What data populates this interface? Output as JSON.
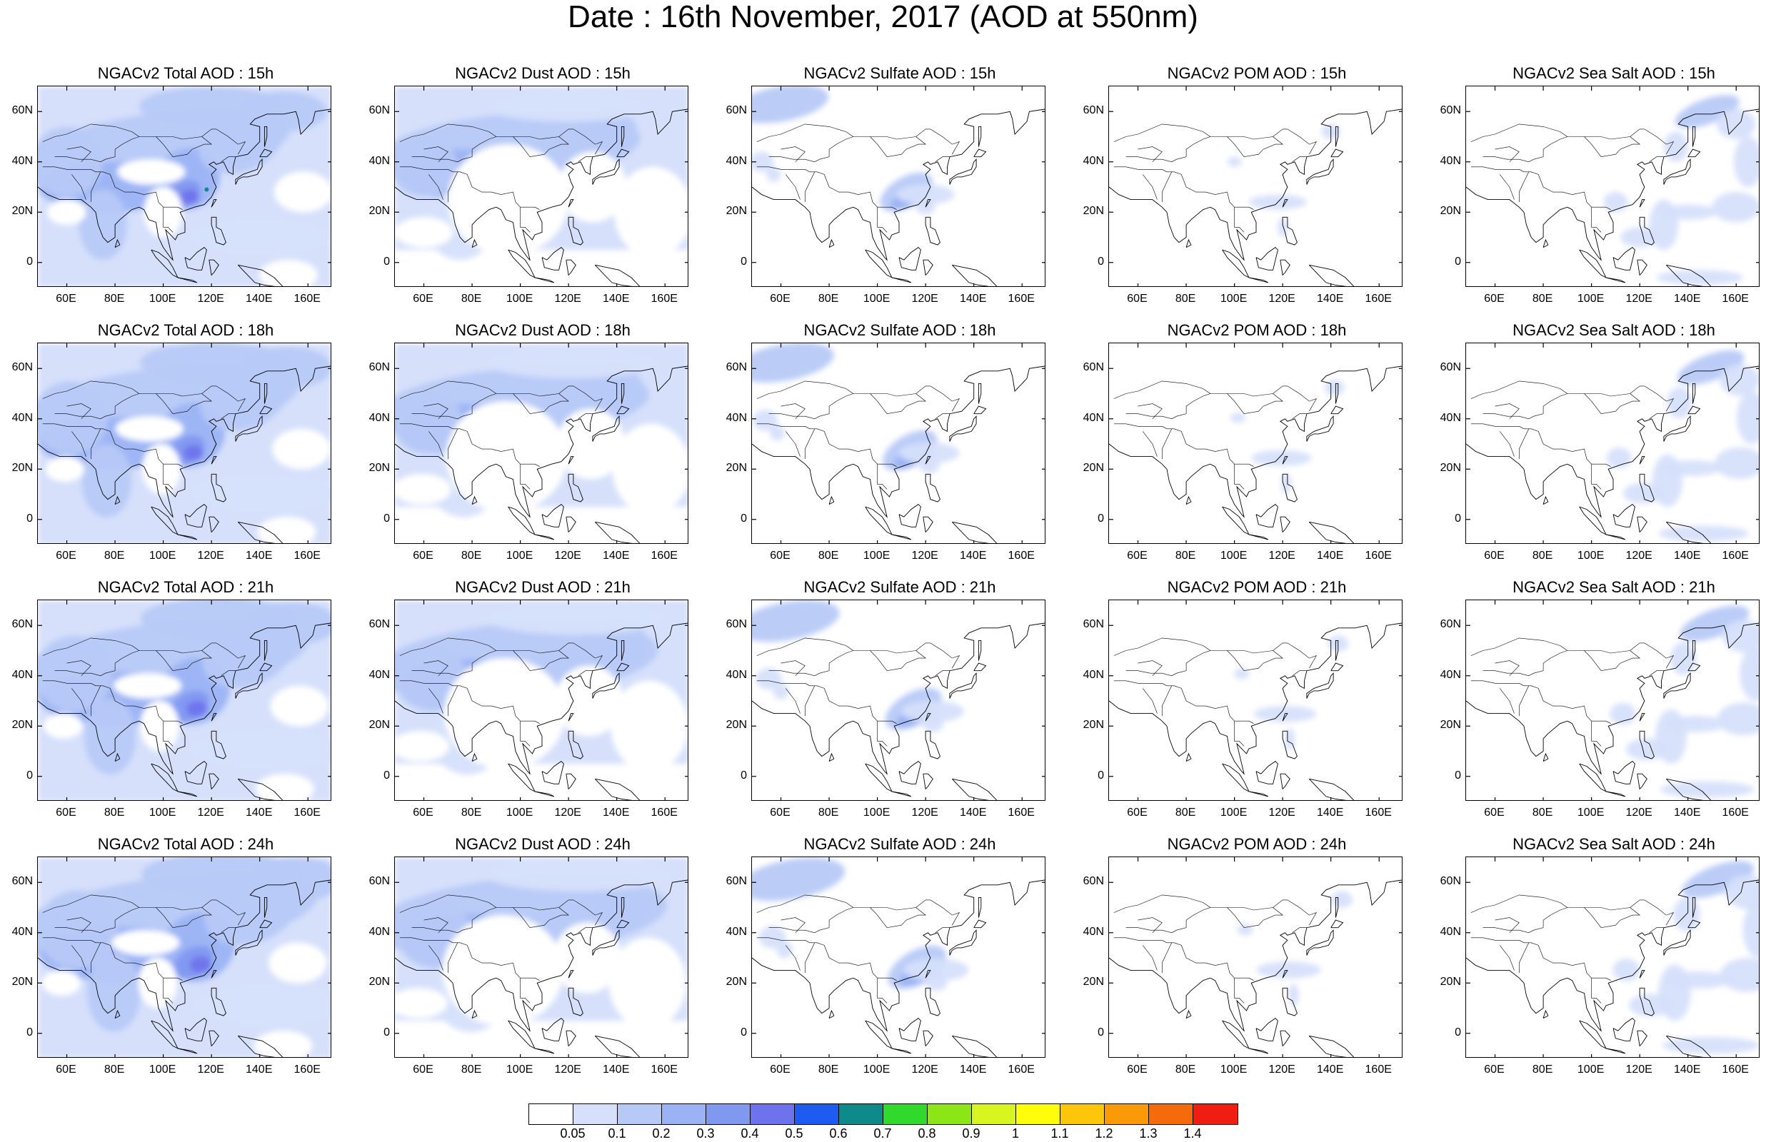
{
  "title": "Date : 16th November, 2017 (AOD at 550nm)",
  "y_labels": [
    "60N",
    "40N",
    "20N",
    "0"
  ],
  "x_labels": [
    "60E",
    "80E",
    "100E",
    "120E",
    "140E",
    "160E"
  ],
  "rows": [
    {
      "hour": "15h",
      "panels": [
        {
          "title": "NGACv2 Total AOD : 15h",
          "variable": "total"
        },
        {
          "title": "NGACv2 Dust AOD : 15h",
          "variable": "dust"
        },
        {
          "title": "NGACv2 Sulfate AOD : 15h",
          "variable": "sulfate"
        },
        {
          "title": "NGACv2 POM AOD : 15h",
          "variable": "pom"
        },
        {
          "title": "NGACv2 Sea Salt AOD : 15h",
          "variable": "seasalt"
        }
      ]
    },
    {
      "hour": "18h",
      "panels": [
        {
          "title": "NGACv2 Total AOD : 18h",
          "variable": "total"
        },
        {
          "title": "NGACv2 Dust AOD : 18h",
          "variable": "dust"
        },
        {
          "title": "NGACv2 Sulfate AOD : 18h",
          "variable": "sulfate"
        },
        {
          "title": "NGACv2 POM AOD : 18h",
          "variable": "pom"
        },
        {
          "title": "NGACv2 Sea Salt AOD : 18h",
          "variable": "seasalt"
        }
      ]
    },
    {
      "hour": "21h",
      "panels": [
        {
          "title": "NGACv2 Total AOD : 21h",
          "variable": "total"
        },
        {
          "title": "NGACv2 Dust AOD : 21h",
          "variable": "dust"
        },
        {
          "title": "NGACv2 Sulfate AOD : 21h",
          "variable": "sulfate"
        },
        {
          "title": "NGACv2 POM AOD : 21h",
          "variable": "pom"
        },
        {
          "title": "NGACv2 Sea Salt AOD : 21h",
          "variable": "seasalt"
        }
      ]
    },
    {
      "hour": "24h",
      "panels": [
        {
          "title": "NGACv2 Total AOD : 24h",
          "variable": "total"
        },
        {
          "title": "NGACv2 Dust AOD : 24h",
          "variable": "dust"
        },
        {
          "title": "NGACv2 Sulfate AOD : 24h",
          "variable": "sulfate"
        },
        {
          "title": "NGACv2 POM AOD : 24h",
          "variable": "pom"
        },
        {
          "title": "NGACv2 Sea Salt  AOD : 24h",
          "variable": "seasalt"
        }
      ]
    }
  ],
  "colorbar": {
    "labels": [
      "0.05",
      "0.1",
      "0.2",
      "0.3",
      "0.4",
      "0.5",
      "0.6",
      "0.7",
      "0.8",
      "0.9",
      "1",
      "1.1",
      "1.2",
      "1.3",
      "1.4"
    ],
    "colors": [
      "#ffffff",
      "#d6e0fb",
      "#b7c9f7",
      "#9bb3f4",
      "#8198f0",
      "#6e72ec",
      "#1e5bf0",
      "#0f8a8a",
      "#30d92c",
      "#8ce515",
      "#d9f51f",
      "#fffd0a",
      "#fdc60a",
      "#fb9a08",
      "#f56a0a",
      "#f01d12"
    ]
  }
}
